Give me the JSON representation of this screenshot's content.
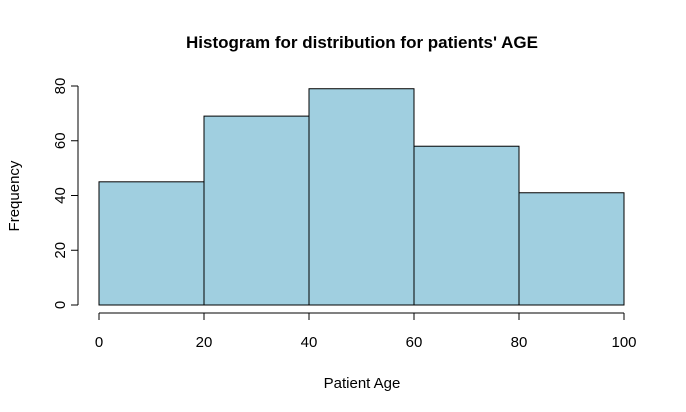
{
  "chart_data": {
    "type": "bar",
    "title": "Histogram for distribution for patients' AGE",
    "xlabel": "Patient Age",
    "ylabel": "Frequency",
    "bins": [
      [
        0,
        20
      ],
      [
        20,
        40
      ],
      [
        40,
        60
      ],
      [
        60,
        80
      ],
      [
        80,
        100
      ]
    ],
    "values": [
      45,
      69,
      79,
      58,
      41
    ],
    "xlim": [
      0,
      100
    ],
    "ylim": [
      0,
      80
    ],
    "xticks": [
      0,
      20,
      40,
      60,
      80,
      100
    ],
    "yticks": [
      0,
      20,
      40,
      60,
      80
    ],
    "bar_color": "#a0cfe0",
    "grid": false
  }
}
